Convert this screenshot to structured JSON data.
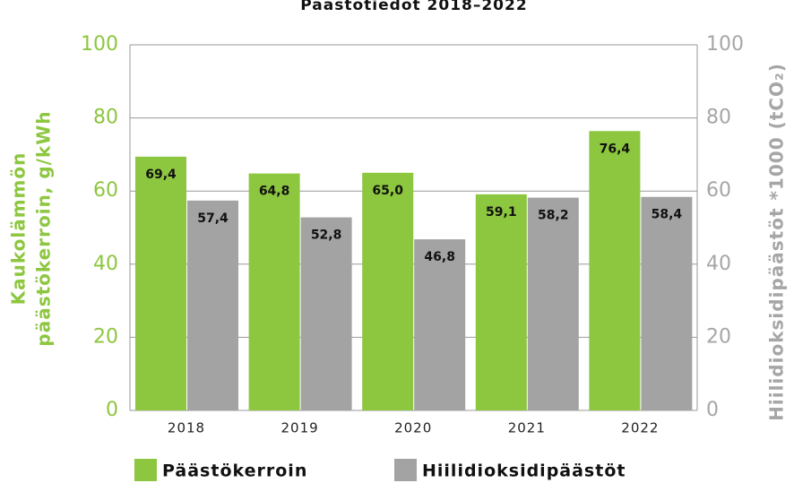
{
  "chart_data": {
    "type": "bar",
    "title": "Päästötiedot 2018–2022",
    "y_label": [
      "Kaukolämmön",
      "päästökerroin, g/kWh"
    ],
    "y2_label": "Hiilidioksidipäästöt *1000 (tCO₂)",
    "categories": [
      "2018",
      "2019",
      "2020",
      "2021",
      "2022"
    ],
    "series": [
      {
        "name": "Päästökerroin",
        "color": "#8dc63f",
        "values": [
          69.4,
          64.8,
          65.0,
          59.1,
          76.4
        ],
        "value_labels": [
          "69,4",
          "64,8",
          "65,0",
          "59,1",
          "76,4"
        ]
      },
      {
        "name": "Hiilidioksidipäästöt",
        "color": "#a3a3a3",
        "axis": "y2",
        "values": [
          57.4,
          52.8,
          46.8,
          58.2,
          58.4
        ],
        "value_labels": [
          "57,4",
          "52,8",
          "46,8",
          "58,2",
          "58,4"
        ]
      }
    ],
    "ylim": [
      0,
      100
    ],
    "yticks": [
      0,
      20,
      40,
      60,
      80,
      100
    ],
    "y2lim": [
      0,
      100
    ],
    "y2ticks": [
      0,
      20,
      40,
      60,
      80,
      100
    ],
    "ytick_color": "#8dc63f",
    "y2tick_color": "#a6a6a6",
    "grid": true,
    "legend": "bottom"
  }
}
